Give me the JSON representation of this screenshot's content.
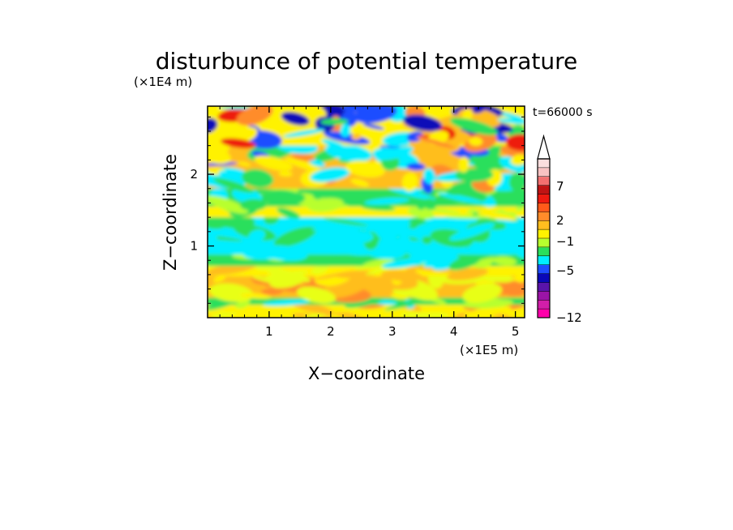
{
  "chart_data": {
    "type": "heatmap",
    "title": "disturbunce of potential temperature",
    "time_label": "t=66000 s",
    "xlabel": "X−coordinate",
    "ylabel": "Z−coordinate",
    "x_unit": "(×1E5 m)",
    "y_unit": "(×1E4 m)",
    "xlim": [
      0,
      5.15
    ],
    "ylim": [
      0,
      2.95
    ],
    "x_ticks": [
      "1",
      "2",
      "3",
      "4",
      "5"
    ],
    "y_ticks": [
      "1",
      "2"
    ],
    "colorbar": {
      "tick_labels": [
        "7",
        "2",
        "−1",
        "−5",
        "−12"
      ],
      "colors": [
        "#ff00aa",
        "#d21ea9",
        "#9a14a6",
        "#5a14aa",
        "#0a08b8",
        "#1f4dff",
        "#00eeff",
        "#2adf5c",
        "#b8ff2e",
        "#fff200",
        "#ffbe1f",
        "#ff8c2a",
        "#ff5a1a",
        "#ee1a10",
        "#c01414",
        "#f37070",
        "#f9c2c2",
        "#fbdede"
      ],
      "extend": "max"
    },
    "layers": [
      {
        "z_range": [
          0.0,
          0.07
        ],
        "pattern": "yellow"
      },
      {
        "z_range": [
          0.07,
          0.18
        ],
        "pattern": "yellow-orange"
      },
      {
        "z_range": [
          0.18,
          0.28
        ],
        "pattern": "green-cyan"
      },
      {
        "z_range": [
          0.28,
          0.58
        ],
        "pattern": "orange-yellow"
      },
      {
        "z_range": [
          0.58,
          0.72
        ],
        "pattern": "yellow"
      },
      {
        "z_range": [
          0.72,
          0.88
        ],
        "pattern": "green"
      },
      {
        "z_range": [
          0.88,
          1.4
        ],
        "pattern": "cyan"
      },
      {
        "z_range": [
          1.4,
          1.55
        ],
        "pattern": "yellow-green"
      },
      {
        "z_range": [
          1.55,
          1.8
        ],
        "pattern": "green-cyan"
      },
      {
        "z_range": [
          1.8,
          2.4
        ],
        "pattern": "orange-blue"
      },
      {
        "z_range": [
          2.4,
          2.95
        ],
        "pattern": "yellow-orange-blue"
      }
    ]
  }
}
